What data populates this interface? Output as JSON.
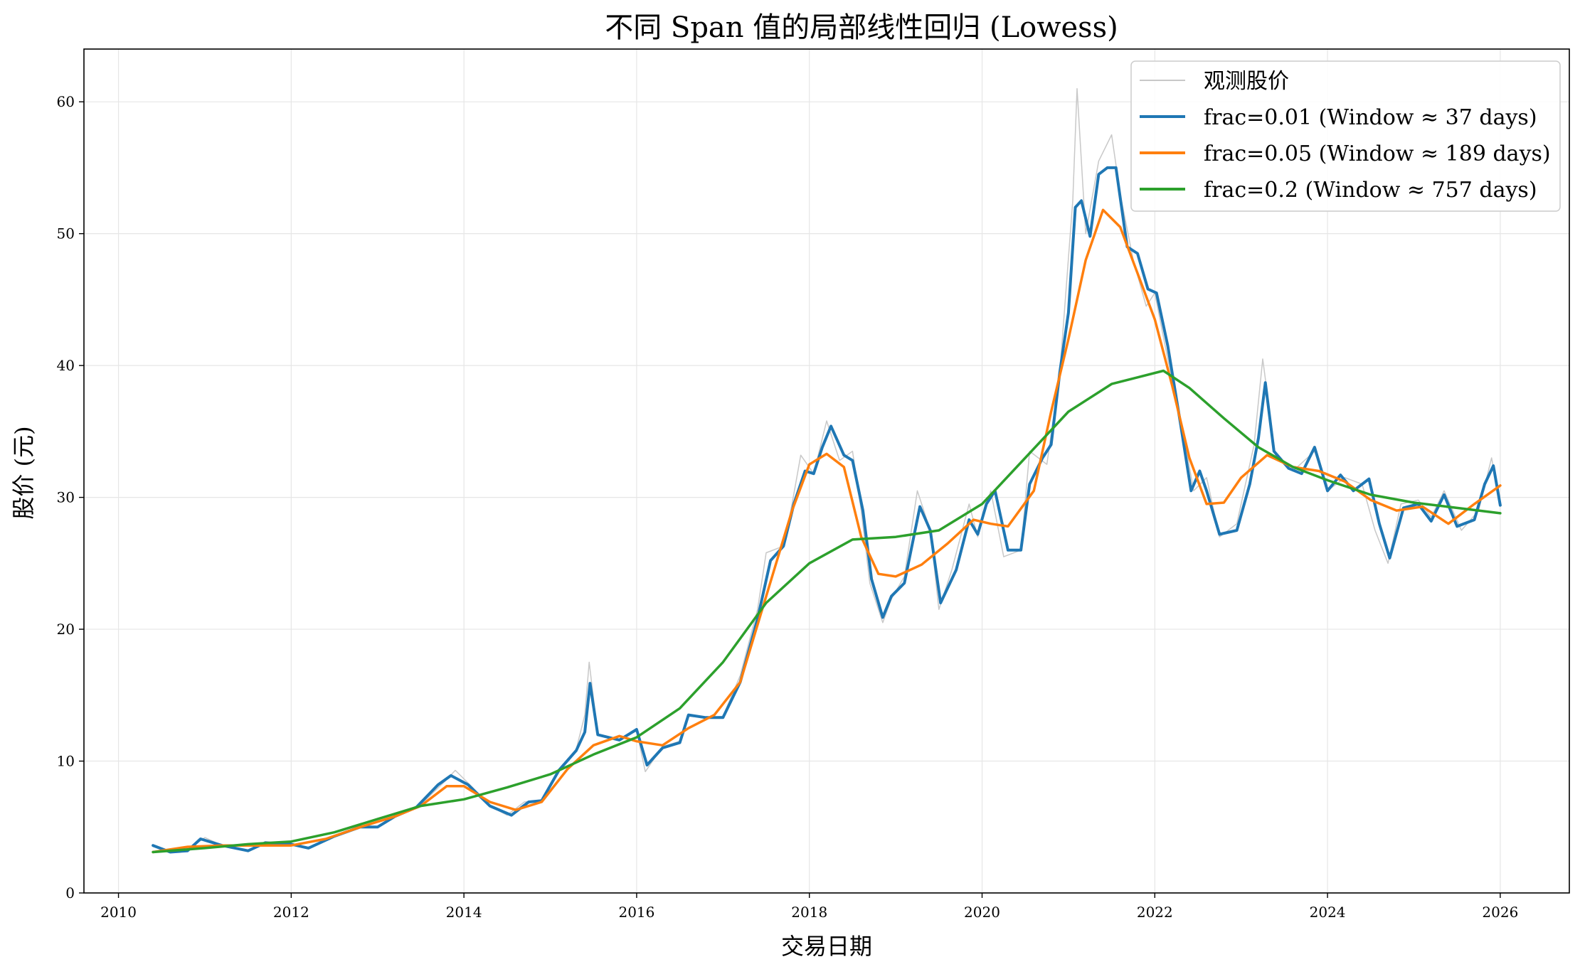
{
  "chart_data": {
    "type": "line",
    "title": "不同 Span 值的局部线性回归 (Lowess)",
    "xlabel": "交易日期",
    "ylabel": "股价 (元)",
    "xlim": [
      2009.6,
      2026.8
    ],
    "ylim": [
      0,
      64
    ],
    "x_ticks": [
      2010,
      2012,
      2014,
      2016,
      2018,
      2020,
      2022,
      2024,
      2026
    ],
    "y_ticks": [
      0,
      10,
      20,
      30,
      40,
      50,
      60
    ],
    "grid": true,
    "legend_position": "top-right",
    "series": [
      {
        "name": "观测股价",
        "color": "#c8c8c8",
        "points": [
          [
            2010.4,
            3.6
          ],
          [
            2010.6,
            3.1
          ],
          [
            2010.8,
            3.3
          ],
          [
            2011.0,
            4.2
          ],
          [
            2011.2,
            3.6
          ],
          [
            2011.5,
            3.2
          ],
          [
            2011.7,
            3.9
          ],
          [
            2012.0,
            3.7
          ],
          [
            2012.2,
            3.4
          ],
          [
            2012.5,
            4.3
          ],
          [
            2012.8,
            5.1
          ],
          [
            2013.0,
            5.0
          ],
          [
            2013.2,
            5.8
          ],
          [
            2013.5,
            6.7
          ],
          [
            2013.8,
            8.6
          ],
          [
            2013.9,
            9.3
          ],
          [
            2014.1,
            8.0
          ],
          [
            2014.3,
            6.6
          ],
          [
            2014.5,
            5.9
          ],
          [
            2014.7,
            6.9
          ],
          [
            2014.9,
            7.0
          ],
          [
            2015.1,
            9.4
          ],
          [
            2015.3,
            10.9
          ],
          [
            2015.4,
            13.5
          ],
          [
            2015.45,
            17.5
          ],
          [
            2015.55,
            12.0
          ],
          [
            2015.8,
            11.6
          ],
          [
            2016.0,
            12.3
          ],
          [
            2016.1,
            9.2
          ],
          [
            2016.3,
            11.1
          ],
          [
            2016.5,
            11.5
          ],
          [
            2016.6,
            13.4
          ],
          [
            2016.8,
            13.3
          ],
          [
            2017.0,
            13.4
          ],
          [
            2017.2,
            16.5
          ],
          [
            2017.4,
            21.5
          ],
          [
            2017.5,
            25.8
          ],
          [
            2017.7,
            26.3
          ],
          [
            2017.8,
            29.5
          ],
          [
            2017.9,
            33.2
          ],
          [
            2018.05,
            31.8
          ],
          [
            2018.2,
            35.8
          ],
          [
            2018.35,
            32.8
          ],
          [
            2018.5,
            33.5
          ],
          [
            2018.6,
            29.0
          ],
          [
            2018.7,
            23.5
          ],
          [
            2018.85,
            20.5
          ],
          [
            2018.95,
            22.3
          ],
          [
            2019.1,
            24.0
          ],
          [
            2019.25,
            30.5
          ],
          [
            2019.4,
            27.5
          ],
          [
            2019.5,
            21.5
          ],
          [
            2019.65,
            24.5
          ],
          [
            2019.85,
            29.5
          ],
          [
            2019.95,
            27.0
          ],
          [
            2020.1,
            30.5
          ],
          [
            2020.25,
            25.5
          ],
          [
            2020.45,
            26.0
          ],
          [
            2020.55,
            33.5
          ],
          [
            2020.75,
            32.5
          ],
          [
            2020.9,
            39.5
          ],
          [
            2021.05,
            52.5
          ],
          [
            2021.1,
            61.0
          ],
          [
            2021.2,
            50.0
          ],
          [
            2021.35,
            55.5
          ],
          [
            2021.5,
            57.5
          ],
          [
            2021.6,
            53.0
          ],
          [
            2021.75,
            48.0
          ],
          [
            2021.9,
            44.5
          ],
          [
            2022.0,
            45.5
          ],
          [
            2022.15,
            40.5
          ],
          [
            2022.3,
            36.0
          ],
          [
            2022.45,
            30.5
          ],
          [
            2022.6,
            31.5
          ],
          [
            2022.75,
            27.0
          ],
          [
            2022.95,
            28.0
          ],
          [
            2023.15,
            34.0
          ],
          [
            2023.25,
            40.5
          ],
          [
            2023.4,
            33.0
          ],
          [
            2023.6,
            32.0
          ],
          [
            2023.85,
            33.5
          ],
          [
            2024.0,
            30.5
          ],
          [
            2024.2,
            31.5
          ],
          [
            2024.4,
            31.0
          ],
          [
            2024.55,
            27.5
          ],
          [
            2024.7,
            25.0
          ],
          [
            2024.85,
            29.5
          ],
          [
            2025.05,
            29.8
          ],
          [
            2025.2,
            28.5
          ],
          [
            2025.35,
            30.5
          ],
          [
            2025.55,
            27.5
          ],
          [
            2025.75,
            29.0
          ],
          [
            2025.9,
            33.0
          ],
          [
            2026.0,
            29.5
          ]
        ]
      },
      {
        "name": "frac=0.01 (Window ≈ 37 days)",
        "color": "#1f77b4",
        "points": [
          [
            2010.4,
            3.6
          ],
          [
            2010.6,
            3.1
          ],
          [
            2010.8,
            3.2
          ],
          [
            2010.95,
            4.1
          ],
          [
            2011.2,
            3.6
          ],
          [
            2011.5,
            3.2
          ],
          [
            2011.7,
            3.8
          ],
          [
            2012.0,
            3.7
          ],
          [
            2012.2,
            3.4
          ],
          [
            2012.5,
            4.3
          ],
          [
            2012.8,
            5.0
          ],
          [
            2013.0,
            5.0
          ],
          [
            2013.2,
            5.8
          ],
          [
            2013.45,
            6.5
          ],
          [
            2013.7,
            8.2
          ],
          [
            2013.85,
            8.9
          ],
          [
            2014.05,
            8.2
          ],
          [
            2014.3,
            6.6
          ],
          [
            2014.55,
            5.9
          ],
          [
            2014.75,
            6.9
          ],
          [
            2014.9,
            7.0
          ],
          [
            2015.1,
            9.3
          ],
          [
            2015.3,
            10.8
          ],
          [
            2015.4,
            12.2
          ],
          [
            2015.46,
            15.9
          ],
          [
            2015.55,
            12.0
          ],
          [
            2015.8,
            11.6
          ],
          [
            2016.0,
            12.4
          ],
          [
            2016.12,
            9.7
          ],
          [
            2016.3,
            11.0
          ],
          [
            2016.5,
            11.4
          ],
          [
            2016.6,
            13.5
          ],
          [
            2016.8,
            13.3
          ],
          [
            2017.0,
            13.3
          ],
          [
            2017.2,
            16.0
          ],
          [
            2017.4,
            20.8
          ],
          [
            2017.55,
            25.2
          ],
          [
            2017.7,
            26.3
          ],
          [
            2017.82,
            29.5
          ],
          [
            2017.95,
            32.0
          ],
          [
            2018.05,
            31.8
          ],
          [
            2018.15,
            33.8
          ],
          [
            2018.25,
            35.4
          ],
          [
            2018.4,
            33.2
          ],
          [
            2018.5,
            32.8
          ],
          [
            2018.62,
            29.0
          ],
          [
            2018.72,
            23.8
          ],
          [
            2018.85,
            20.9
          ],
          [
            2018.95,
            22.5
          ],
          [
            2019.1,
            23.5
          ],
          [
            2019.28,
            29.3
          ],
          [
            2019.4,
            27.5
          ],
          [
            2019.52,
            22.0
          ],
          [
            2019.7,
            24.5
          ],
          [
            2019.85,
            28.3
          ],
          [
            2019.95,
            27.2
          ],
          [
            2020.05,
            29.5
          ],
          [
            2020.15,
            30.5
          ],
          [
            2020.3,
            26.0
          ],
          [
            2020.45,
            26.0
          ],
          [
            2020.55,
            31.0
          ],
          [
            2020.7,
            33.0
          ],
          [
            2020.8,
            34.0
          ],
          [
            2020.9,
            39.5
          ],
          [
            2021.0,
            44.0
          ],
          [
            2021.08,
            52.0
          ],
          [
            2021.15,
            52.5
          ],
          [
            2021.25,
            49.8
          ],
          [
            2021.35,
            54.5
          ],
          [
            2021.45,
            55.0
          ],
          [
            2021.55,
            55.0
          ],
          [
            2021.68,
            49.0
          ],
          [
            2021.8,
            48.5
          ],
          [
            2021.92,
            45.8
          ],
          [
            2022.02,
            45.5
          ],
          [
            2022.15,
            41.5
          ],
          [
            2022.3,
            35.5
          ],
          [
            2022.42,
            30.5
          ],
          [
            2022.52,
            32.0
          ],
          [
            2022.6,
            30.5
          ],
          [
            2022.75,
            27.2
          ],
          [
            2022.95,
            27.5
          ],
          [
            2023.1,
            31.0
          ],
          [
            2023.2,
            34.5
          ],
          [
            2023.28,
            38.7
          ],
          [
            2023.38,
            33.5
          ],
          [
            2023.55,
            32.2
          ],
          [
            2023.7,
            31.8
          ],
          [
            2023.85,
            33.8
          ],
          [
            2024.0,
            30.5
          ],
          [
            2024.15,
            31.7
          ],
          [
            2024.3,
            30.5
          ],
          [
            2024.48,
            31.4
          ],
          [
            2024.6,
            28.0
          ],
          [
            2024.72,
            25.4
          ],
          [
            2024.88,
            29.2
          ],
          [
            2025.05,
            29.5
          ],
          [
            2025.2,
            28.2
          ],
          [
            2025.35,
            30.2
          ],
          [
            2025.5,
            27.8
          ],
          [
            2025.7,
            28.3
          ],
          [
            2025.82,
            31.0
          ],
          [
            2025.92,
            32.4
          ],
          [
            2026.0,
            29.4
          ]
        ]
      },
      {
        "name": "frac=0.05 (Window ≈ 189 days)",
        "color": "#ff7f0e",
        "points": [
          [
            2010.4,
            3.1
          ],
          [
            2010.8,
            3.5
          ],
          [
            2011.2,
            3.6
          ],
          [
            2011.6,
            3.6
          ],
          [
            2012.0,
            3.6
          ],
          [
            2012.4,
            4.1
          ],
          [
            2012.8,
            5.0
          ],
          [
            2013.2,
            5.8
          ],
          [
            2013.5,
            6.6
          ],
          [
            2013.8,
            8.1
          ],
          [
            2014.0,
            8.1
          ],
          [
            2014.3,
            6.9
          ],
          [
            2014.6,
            6.3
          ],
          [
            2014.9,
            6.9
          ],
          [
            2015.2,
            9.4
          ],
          [
            2015.5,
            11.2
          ],
          [
            2015.8,
            11.9
          ],
          [
            2016.0,
            11.5
          ],
          [
            2016.3,
            11.2
          ],
          [
            2016.6,
            12.5
          ],
          [
            2016.9,
            13.5
          ],
          [
            2017.2,
            16.0
          ],
          [
            2017.5,
            22.5
          ],
          [
            2017.8,
            29.0
          ],
          [
            2018.0,
            32.5
          ],
          [
            2018.2,
            33.3
          ],
          [
            2018.4,
            32.3
          ],
          [
            2018.6,
            27.0
          ],
          [
            2018.8,
            24.2
          ],
          [
            2019.0,
            24.0
          ],
          [
            2019.3,
            24.9
          ],
          [
            2019.6,
            26.5
          ],
          [
            2019.9,
            28.3
          ],
          [
            2020.1,
            28.0
          ],
          [
            2020.3,
            27.8
          ],
          [
            2020.6,
            30.5
          ],
          [
            2020.8,
            36.5
          ],
          [
            2021.0,
            42.0
          ],
          [
            2021.2,
            48.0
          ],
          [
            2021.4,
            51.8
          ],
          [
            2021.6,
            50.5
          ],
          [
            2021.8,
            47.0
          ],
          [
            2022.0,
            43.5
          ],
          [
            2022.2,
            38.5
          ],
          [
            2022.4,
            33.0
          ],
          [
            2022.6,
            29.5
          ],
          [
            2022.8,
            29.6
          ],
          [
            2023.0,
            31.5
          ],
          [
            2023.3,
            33.2
          ],
          [
            2023.6,
            32.3
          ],
          [
            2023.9,
            32.0
          ],
          [
            2024.2,
            31.2
          ],
          [
            2024.5,
            29.8
          ],
          [
            2024.8,
            29.0
          ],
          [
            2025.1,
            29.3
          ],
          [
            2025.4,
            28.0
          ],
          [
            2025.7,
            29.5
          ],
          [
            2026.0,
            30.9
          ]
        ]
      },
      {
        "name": "frac=0.2 (Window ≈ 757 days)",
        "color": "#2ca02c",
        "points": [
          [
            2010.4,
            3.1
          ],
          [
            2011.0,
            3.4
          ],
          [
            2011.5,
            3.7
          ],
          [
            2012.0,
            3.9
          ],
          [
            2012.5,
            4.6
          ],
          [
            2013.0,
            5.6
          ],
          [
            2013.5,
            6.6
          ],
          [
            2014.0,
            7.1
          ],
          [
            2014.5,
            8.0
          ],
          [
            2015.0,
            9.0
          ],
          [
            2015.5,
            10.5
          ],
          [
            2016.0,
            11.8
          ],
          [
            2016.5,
            14.0
          ],
          [
            2017.0,
            17.5
          ],
          [
            2017.5,
            22.0
          ],
          [
            2018.0,
            25.0
          ],
          [
            2018.5,
            26.8
          ],
          [
            2019.0,
            27.0
          ],
          [
            2019.5,
            27.5
          ],
          [
            2020.0,
            29.5
          ],
          [
            2020.5,
            33.0
          ],
          [
            2021.0,
            36.5
          ],
          [
            2021.5,
            38.6
          ],
          [
            2021.8,
            39.1
          ],
          [
            2022.1,
            39.6
          ],
          [
            2022.4,
            38.3
          ],
          [
            2022.8,
            36.0
          ],
          [
            2023.2,
            33.8
          ],
          [
            2023.6,
            32.3
          ],
          [
            2024.0,
            31.3
          ],
          [
            2024.5,
            30.2
          ],
          [
            2025.0,
            29.6
          ],
          [
            2025.5,
            29.2
          ],
          [
            2026.0,
            28.8
          ]
        ]
      }
    ]
  }
}
